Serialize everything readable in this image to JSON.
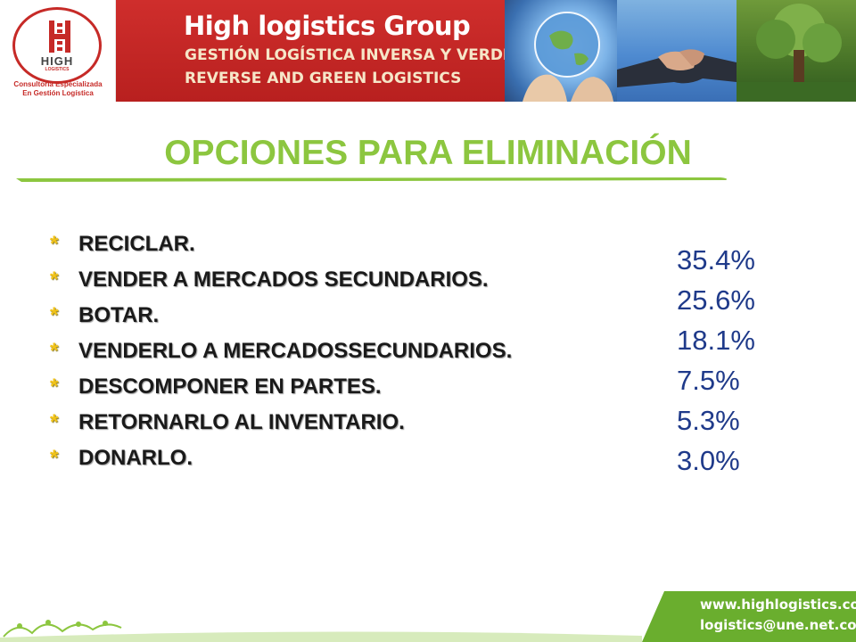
{
  "header": {
    "logo_word": "HIGH",
    "logo_sub": "LOGISTICS",
    "logo_tagline_1": "Consultoría Especializada",
    "logo_tagline_2": "En Gestión Logística",
    "brand_title": "High logistics Group",
    "brand_line_1": "GESTIÓN LOGÍSTICA INVERSA Y VERDE",
    "brand_line_2": "REVERSE AND GREEN LOGISTICS",
    "colors": {
      "banner": "#c62a27",
      "title_green": "#8cc63f"
    }
  },
  "slide": {
    "title": "OPCIONES PARA ELIMINACIÓN",
    "bullet_symbol": "*",
    "options": [
      "RECICLAR.",
      "VENDER A MERCADOS SECUNDARIOS.",
      "BOTAR.",
      "VENDERLO A MERCADOSSECUNDARIOS.",
      "DESCOMPONER EN PARTES.",
      "RETORNARLO AL INVENTARIO.",
      "DONARLO."
    ],
    "percentages": [
      "35.4%",
      "25.6%",
      "18.1%",
      "7.5%",
      "5.3%",
      "3.0%"
    ],
    "colors": {
      "bullet": "#f2c318",
      "percent": "#1f3a8a"
    }
  },
  "footer": {
    "website": "www.highlogistics.com",
    "email": "logistics@une.net.co",
    "color": "#6aae2e"
  }
}
